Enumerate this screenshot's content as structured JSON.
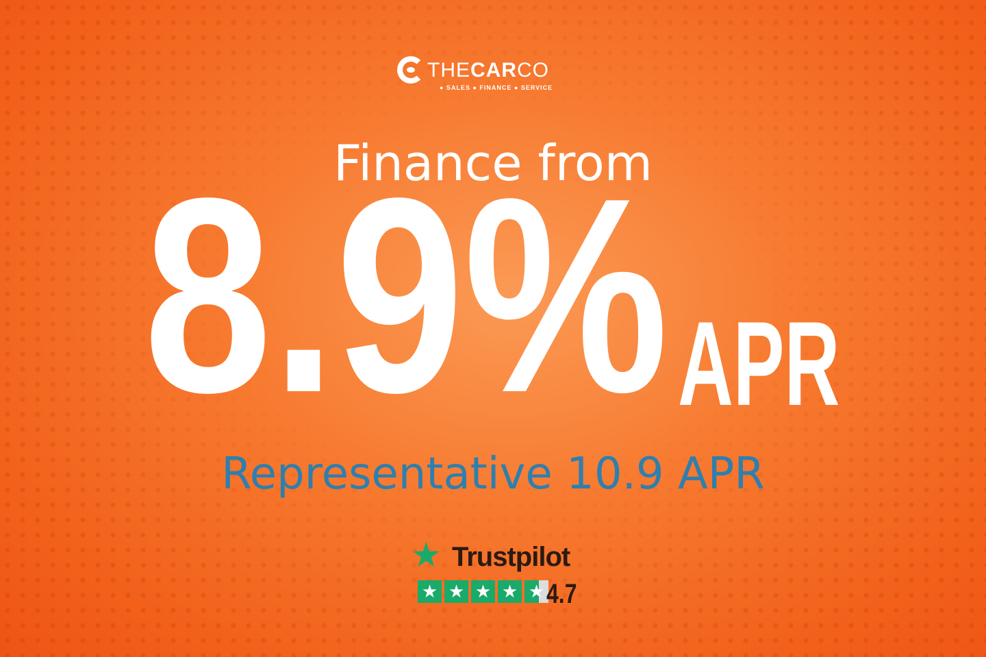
{
  "logo": {
    "name_light_1": "THE",
    "name_bold": "CAR",
    "name_light_2": "CO",
    "tagline": "● SALES ● FINANCE ● SERVICE"
  },
  "headline": "Finance from",
  "rate": "8.9%",
  "rate_suffix": "APR",
  "representative": "Representative 10.9 APR",
  "trustpilot": {
    "brand": "Trustpilot",
    "score": "4.7",
    "rating": 4.7,
    "max_stars": 5,
    "star_color": "#1aaa6a"
  },
  "colors": {
    "background": "#f77a30",
    "accent_blue": "#2f7fae"
  }
}
